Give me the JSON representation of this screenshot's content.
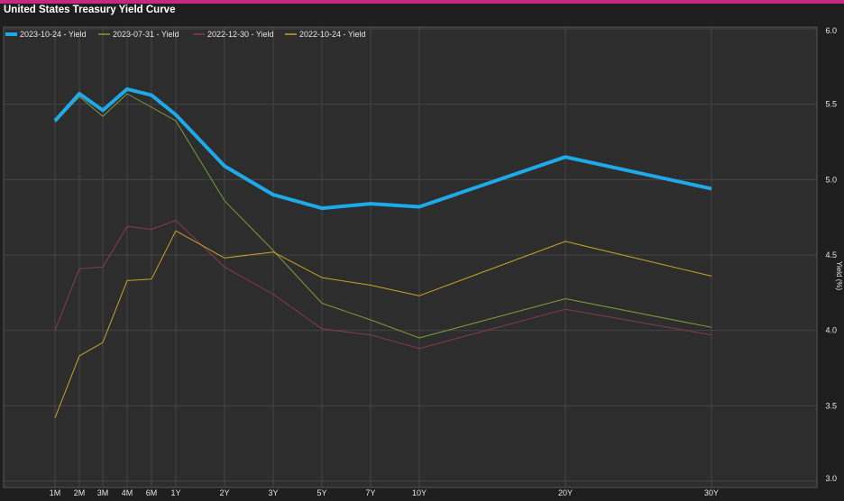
{
  "chart_data": {
    "type": "line",
    "title": "United States Treasury Yield Curve",
    "xlabel": "",
    "ylabel": "Yield (%)",
    "categories": [
      "1M",
      "2M",
      "3M",
      "4M",
      "6M",
      "1Y",
      "2Y",
      "3Y",
      "5Y",
      "7Y",
      "10Y",
      "20Y",
      "30Y"
    ],
    "ylim": [
      3.0,
      6.0
    ],
    "yticks": [
      "6.0",
      "5.5",
      "5.0",
      "4.5",
      "4.0",
      "3.5",
      "3.0"
    ],
    "grid": true,
    "legend_position": "top-left",
    "series": [
      {
        "name": "2023-10-24 - Yield",
        "color": "#1ea9e8",
        "values": [
          5.39,
          5.57,
          5.46,
          5.6,
          5.56,
          5.43,
          5.09,
          4.9,
          4.81,
          4.84,
          4.82,
          5.15,
          4.94
        ]
      },
      {
        "name": "2023-07-31 - Yield",
        "color": "#7e9a3a",
        "values": [
          5.38,
          5.55,
          5.42,
          5.57,
          5.48,
          5.39,
          4.86,
          4.53,
          4.18,
          4.07,
          3.95,
          4.21,
          4.02
        ]
      },
      {
        "name": "2022-12-30 - Yield",
        "color": "#8a3a52",
        "values": [
          4.0,
          4.41,
          4.42,
          4.69,
          4.67,
          4.73,
          4.42,
          4.24,
          4.01,
          3.97,
          3.88,
          4.14,
          3.97
        ]
      },
      {
        "name": "2022-10-24 - Yield",
        "color": "#c9a227",
        "values": [
          3.42,
          3.83,
          3.92,
          4.33,
          4.34,
          4.66,
          4.48,
          4.52,
          4.35,
          4.3,
          4.23,
          4.59,
          4.36
        ]
      }
    ]
  }
}
